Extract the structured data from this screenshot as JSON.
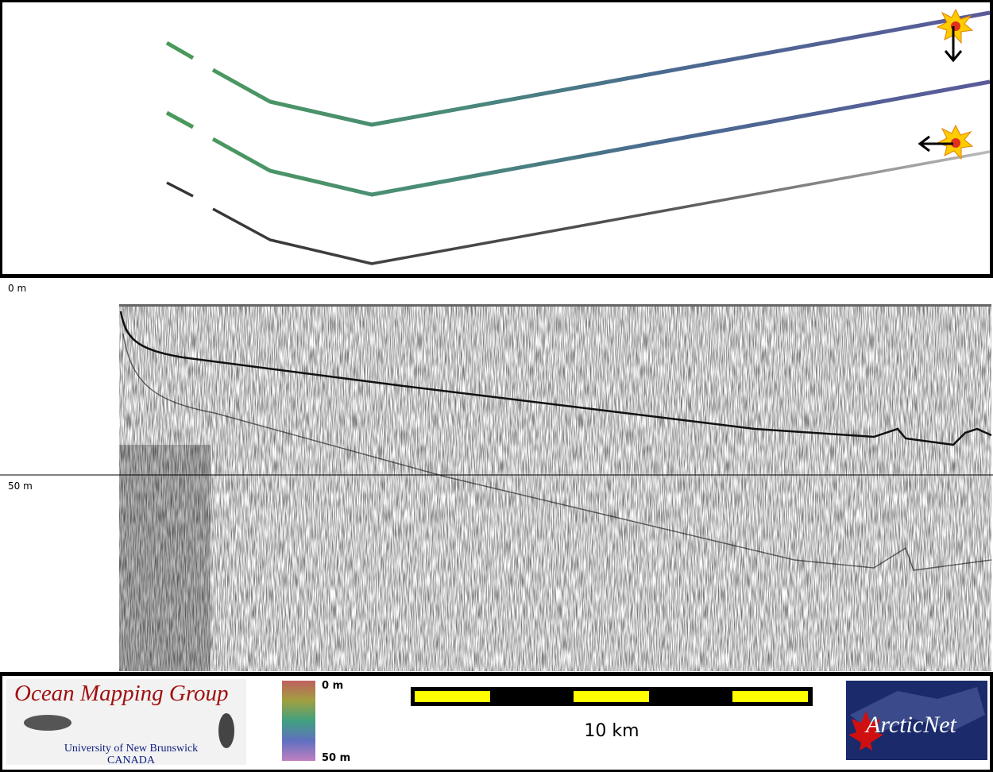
{
  "depth_scale": {
    "top": "0 m",
    "middle": "50 m"
  },
  "logo": {
    "title": "Ocean Mapping Group",
    "university": "University of New Brunswick",
    "country": "CANADA"
  },
  "colorbar": {
    "top": "0 m",
    "bottom": "50 m"
  },
  "scale_bar": {
    "label": "10 km"
  },
  "partner_logo": {
    "label": "ArcticNet"
  }
}
